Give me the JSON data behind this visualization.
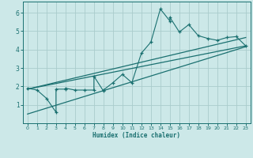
{
  "xlabel": "Humidex (Indice chaleur)",
  "bg_color": "#cce8e8",
  "line_color": "#1a7070",
  "grid_color": "#aacccc",
  "xlim": [
    -0.5,
    23.5
  ],
  "ylim": [
    0,
    6.6
  ],
  "xticks": [
    0,
    1,
    2,
    3,
    4,
    5,
    6,
    7,
    8,
    9,
    10,
    11,
    12,
    13,
    14,
    15,
    16,
    17,
    18,
    19,
    20,
    21,
    22,
    23
  ],
  "yticks": [
    1,
    2,
    3,
    4,
    5,
    6
  ],
  "data_x": [
    0,
    1,
    2,
    3,
    3,
    4,
    4,
    5,
    6,
    7,
    7,
    8,
    8,
    9,
    10,
    11,
    12,
    13,
    14,
    15,
    15,
    16,
    17,
    18,
    19,
    20,
    21,
    22,
    23
  ],
  "data_y": [
    1.9,
    1.8,
    1.35,
    0.6,
    1.85,
    1.85,
    1.9,
    1.8,
    1.8,
    1.8,
    2.55,
    1.75,
    1.8,
    2.2,
    2.65,
    2.2,
    3.8,
    4.4,
    6.2,
    5.55,
    5.75,
    4.95,
    5.35,
    4.75,
    4.6,
    4.5,
    4.65,
    4.7,
    4.2
  ],
  "trend1_x": [
    0,
    23
  ],
  "trend1_y": [
    1.85,
    4.2
  ],
  "trend2_x": [
    0,
    23
  ],
  "trend2_y": [
    0.5,
    4.15
  ],
  "trend3_x": [
    0,
    23
  ],
  "trend3_y": [
    1.85,
    4.65
  ]
}
